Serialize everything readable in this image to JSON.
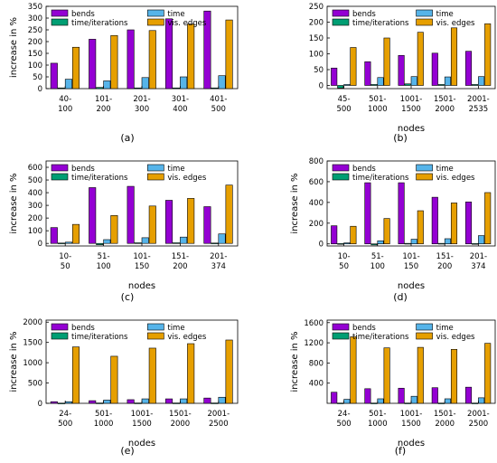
{
  "figure": {
    "panel_labels": [
      "(a)",
      "(b)",
      "(c)",
      "(d)",
      "(e)",
      "(f)"
    ]
  },
  "legend": {
    "labels": [
      "bends",
      "time",
      "time/iterations",
      "vis. edges"
    ],
    "colors": {
      "bends": "#9400D3",
      "time": "#56B4E9",
      "time/iterations": "#009E73",
      "vis. edges": "#E69F00"
    }
  },
  "chart_data": [
    {
      "type": "bar",
      "panel": "(a)",
      "categories": [
        "40-\n100",
        "101-\n200",
        "201-\n300",
        "301-\n400",
        "401-\n500"
      ],
      "xlabel": "",
      "ylabel": "increase in %",
      "ylim": [
        0,
        350
      ],
      "yticks": [
        0,
        50,
        100,
        150,
        200,
        250,
        300,
        350
      ],
      "series": [
        {
          "name": "bends",
          "values": [
            108,
            210,
            250,
            297,
            330
          ]
        },
        {
          "name": "time/iterations",
          "values": [
            3,
            5,
            3,
            3,
            3
          ]
        },
        {
          "name": "time",
          "values": [
            40,
            33,
            47,
            50,
            55
          ]
        },
        {
          "name": "vis. edges",
          "values": [
            176,
            226,
            247,
            275,
            292
          ]
        }
      ],
      "legend_position": "top",
      "grid": false
    },
    {
      "type": "bar",
      "panel": "(b)",
      "categories": [
        "45-\n500",
        "501-\n1000",
        "1001-\n1500",
        "1501-\n2000",
        "2001-\n2535"
      ],
      "xlabel": "nodes",
      "ylabel": "",
      "ylim": [
        -10,
        250
      ],
      "yticks": [
        0,
        50,
        100,
        150,
        200,
        250
      ],
      "series": [
        {
          "name": "bends",
          "values": [
            55,
            75,
            95,
            102,
            108
          ]
        },
        {
          "name": "time/iterations",
          "values": [
            -8,
            3,
            5,
            3,
            3
          ]
        },
        {
          "name": "time",
          "values": [
            3,
            25,
            28,
            27,
            28
          ]
        },
        {
          "name": "vis. edges",
          "values": [
            120,
            150,
            168,
            182,
            195
          ]
        }
      ],
      "legend_position": "top",
      "grid": false
    },
    {
      "type": "bar",
      "panel": "(c)",
      "categories": [
        "10-\n50",
        "51-\n100",
        "101-\n150",
        "151-\n200",
        "201-\n374"
      ],
      "xlabel": "nodes",
      "ylabel": "increase in %",
      "ylim": [
        -20,
        650
      ],
      "yticks": [
        0,
        100,
        200,
        300,
        400,
        500,
        600
      ],
      "series": [
        {
          "name": "bends",
          "values": [
            125,
            440,
            450,
            340,
            290
          ]
        },
        {
          "name": "time/iterations",
          "values": [
            3,
            -10,
            5,
            5,
            3
          ]
        },
        {
          "name": "time",
          "values": [
            10,
            30,
            45,
            50,
            75
          ]
        },
        {
          "name": "vis. edges",
          "values": [
            150,
            220,
            295,
            355,
            460
          ]
        }
      ],
      "legend_position": "top",
      "grid": false
    },
    {
      "type": "bar",
      "panel": "(d)",
      "categories": [
        "10-\n50",
        "51-\n100",
        "101-\n150",
        "151-\n200",
        "201-\n374"
      ],
      "xlabel": "nodes",
      "ylabel": "increase in %",
      "ylim": [
        -20,
        800
      ],
      "yticks": [
        0,
        200,
        400,
        600,
        800
      ],
      "series": [
        {
          "name": "bends",
          "values": [
            175,
            590,
            590,
            450,
            405
          ]
        },
        {
          "name": "time/iterations",
          "values": [
            3,
            -10,
            5,
            5,
            3
          ]
        },
        {
          "name": "time",
          "values": [
            10,
            30,
            45,
            50,
            80
          ]
        },
        {
          "name": "vis. edges",
          "values": [
            170,
            245,
            320,
            395,
            495
          ]
        }
      ],
      "legend_position": "top",
      "grid": false
    },
    {
      "type": "bar",
      "panel": "(e)",
      "categories": [
        "24-\n500",
        "501-\n1000",
        "1001-\n1500",
        "1501-\n2000",
        "2001-\n2500"
      ],
      "xlabel": "nodes",
      "ylabel": "increase in %",
      "ylim": [
        0,
        2050
      ],
      "yticks": [
        0,
        500,
        1000,
        1500,
        2000
      ],
      "series": [
        {
          "name": "bends",
          "values": [
            40,
            65,
            90,
            110,
            130
          ]
        },
        {
          "name": "time/iterations",
          "values": [
            5,
            8,
            8,
            8,
            8
          ]
        },
        {
          "name": "time",
          "values": [
            40,
            80,
            110,
            110,
            150
          ]
        },
        {
          "name": "vis. edges",
          "values": [
            1390,
            1160,
            1360,
            1470,
            1560
          ]
        }
      ],
      "legend_position": "top",
      "grid": false
    },
    {
      "type": "bar",
      "panel": "(f)",
      "categories": [
        "24-\n500",
        "501-\n1000",
        "1001-\n1500",
        "1501-\n2000",
        "2001-\n2500"
      ],
      "xlabel": "nodes",
      "ylabel": "increase in %",
      "ylim": [
        0,
        1650
      ],
      "yticks": [
        400,
        800,
        1200,
        1600
      ],
      "series": [
        {
          "name": "bends",
          "values": [
            220,
            290,
            300,
            310,
            320
          ]
        },
        {
          "name": "time/iterations",
          "values": [
            5,
            5,
            5,
            5,
            5
          ]
        },
        {
          "name": "time",
          "values": [
            80,
            90,
            140,
            90,
            110
          ]
        },
        {
          "name": "vis. edges",
          "values": [
            1320,
            1100,
            1110,
            1070,
            1190
          ]
        }
      ],
      "legend_position": "top",
      "grid": false
    }
  ]
}
